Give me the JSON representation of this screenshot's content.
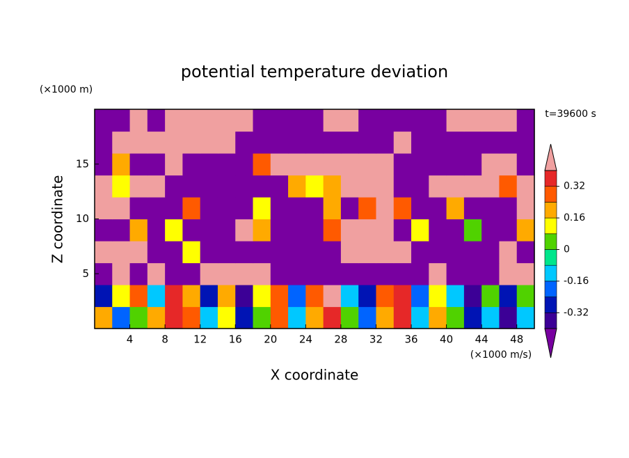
{
  "chart_data": {
    "type": "contour",
    "title": "potential temperature deviation",
    "xlabel": "X coordinate",
    "ylabel": "Z coordinate",
    "xunit": "(×1000 m/s)",
    "yunit": "(×1000 m)",
    "time_label": "t=39600 s",
    "xlim": [
      0,
      50
    ],
    "ylim": [
      0,
      20
    ],
    "xticks": [
      4,
      8,
      12,
      16,
      20,
      24,
      28,
      32,
      36,
      40,
      44,
      48
    ],
    "yticks": [
      5,
      10,
      15
    ],
    "x": [
      1,
      3,
      5,
      7,
      9,
      11,
      13,
      15,
      17,
      19,
      21,
      23,
      25,
      27,
      29,
      31,
      33,
      35,
      37,
      39,
      41,
      43,
      45,
      47,
      49
    ],
    "y": [
      1,
      3,
      5,
      7,
      9,
      11,
      13,
      15,
      17,
      19
    ],
    "levels": [
      -0.4,
      -0.32,
      -0.24,
      -0.16,
      -0.08,
      0,
      0.08,
      0.16,
      0.24,
      0.32,
      0.4
    ],
    "colors": [
      "#3c0096",
      "#0014b4",
      "#0064ff",
      "#00c8ff",
      "#00e68c",
      "#50d200",
      "#ffff00",
      "#ffaa00",
      "#ff5a00",
      "#e62828"
    ],
    "under_color": "#7800a0",
    "over_color": "#f0a0a0",
    "colorbar_ticks": [
      0.32,
      0.16,
      0,
      -0.16,
      -0.32
    ],
    "z": [
      [
        0.2,
        -0.2,
        0,
        0.2,
        0.35,
        0.25,
        -0.1,
        0.15,
        -0.3,
        0,
        0.3,
        -0.1,
        0.2,
        0.35,
        0.05,
        -0.2,
        0.2,
        0.35,
        -0.1,
        0.2,
        0.05,
        -0.3,
        -0.1,
        -0.35,
        -0.1
      ],
      [
        -0.3,
        0.1,
        0.3,
        -0.1,
        0.38,
        0.2,
        -0.3,
        0.2,
        -0.35,
        0.1,
        0.25,
        -0.2,
        0.3,
        0.5,
        -0.1,
        -0.3,
        0.25,
        0.38,
        -0.2,
        0.15,
        -0.1,
        -0.35,
        0,
        -0.3,
        0.05
      ],
      [
        -0.5,
        0.5,
        -0.5,
        0.5,
        -0.5,
        -0.5,
        0.5,
        0.5,
        0.5,
        0.5,
        -0.5,
        -0.5,
        -0.5,
        -0.5,
        -0.5,
        -0.5,
        -0.5,
        -0.5,
        -0.5,
        0.5,
        -0.5,
        -0.5,
        -0.5,
        0.5,
        0.5
      ],
      [
        0.5,
        0.5,
        0.5,
        -0.5,
        -0.5,
        0.1,
        -0.5,
        -0.5,
        -0.5,
        -0.5,
        -0.5,
        -0.5,
        -0.5,
        -0.5,
        0.5,
        0.5,
        0.5,
        0.5,
        -0.5,
        -0.5,
        -0.5,
        -0.5,
        -0.5,
        0.5,
        -0.5
      ],
      [
        -0.5,
        -0.5,
        0.2,
        -0.5,
        0.1,
        -0.5,
        -0.5,
        -0.5,
        0.5,
        0.2,
        -0.5,
        -0.5,
        -0.5,
        0.3,
        0.5,
        0.5,
        0.5,
        -0.5,
        0.1,
        -0.5,
        -0.5,
        0,
        -0.5,
        -0.5,
        0.2
      ],
      [
        0.5,
        0.5,
        -0.5,
        -0.5,
        -0.5,
        0.3,
        -0.5,
        -0.5,
        -0.5,
        0.1,
        -0.5,
        -0.5,
        -0.5,
        0.2,
        -0.5,
        0.3,
        0.5,
        0.3,
        -0.5,
        -0.5,
        0.2,
        -0.5,
        -0.5,
        -0.5,
        0.5
      ],
      [
        0.5,
        0.1,
        0.5,
        0.5,
        -0.5,
        -0.5,
        -0.5,
        -0.5,
        -0.5,
        -0.5,
        -0.5,
        0.2,
        0.1,
        0.2,
        0.5,
        0.5,
        0.5,
        -0.5,
        -0.5,
        0.5,
        0.5,
        0.5,
        0.5,
        0.3,
        0.5
      ],
      [
        -0.5,
        0.2,
        -0.5,
        -0.5,
        0.5,
        -0.5,
        -0.5,
        -0.5,
        -0.5,
        0.3,
        0.5,
        0.5,
        0.5,
        0.5,
        0.5,
        0.5,
        0.5,
        -0.5,
        -0.5,
        -0.5,
        -0.5,
        -0.5,
        0.5,
        0.5,
        -0.5
      ],
      [
        -0.5,
        0.5,
        0.5,
        0.5,
        0.5,
        0.5,
        0.5,
        0.5,
        -0.5,
        -0.5,
        -0.5,
        -0.5,
        -0.5,
        -0.5,
        -0.5,
        -0.5,
        -0.5,
        0.5,
        -0.5,
        -0.5,
        -0.5,
        -0.5,
        -0.5,
        -0.5,
        -0.5
      ],
      [
        -0.5,
        -0.5,
        0.5,
        -0.5,
        0.5,
        0.5,
        0.5,
        0.5,
        0.5,
        -0.5,
        -0.5,
        -0.5,
        -0.5,
        0.5,
        0.5,
        -0.5,
        -0.5,
        -0.5,
        -0.5,
        -0.5,
        0.5,
        0.5,
        0.5,
        0.5,
        -0.5
      ]
    ]
  }
}
